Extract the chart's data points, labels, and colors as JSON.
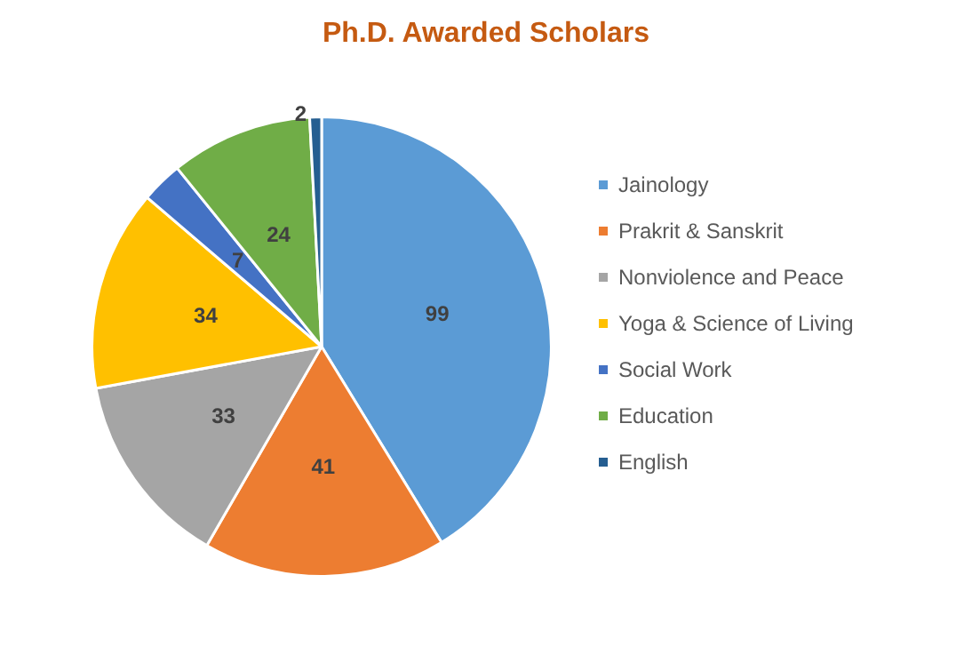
{
  "chart_data": {
    "type": "pie",
    "title": "Ph.D. Awarded Scholars",
    "categories": [
      "Jainology",
      "Prakrit & Sanskrit",
      "Nonviolence and Peace",
      "Yoga & Science of Living",
      "Social Work",
      "Education",
      "English"
    ],
    "values": [
      99,
      41,
      33,
      34,
      7,
      24,
      2
    ],
    "colors": [
      "#5b9bd5",
      "#ed7d31",
      "#a5a5a5",
      "#ffc000",
      "#4472c4",
      "#70ad47",
      "#255e91"
    ],
    "data_labels": true,
    "legend": "right"
  }
}
